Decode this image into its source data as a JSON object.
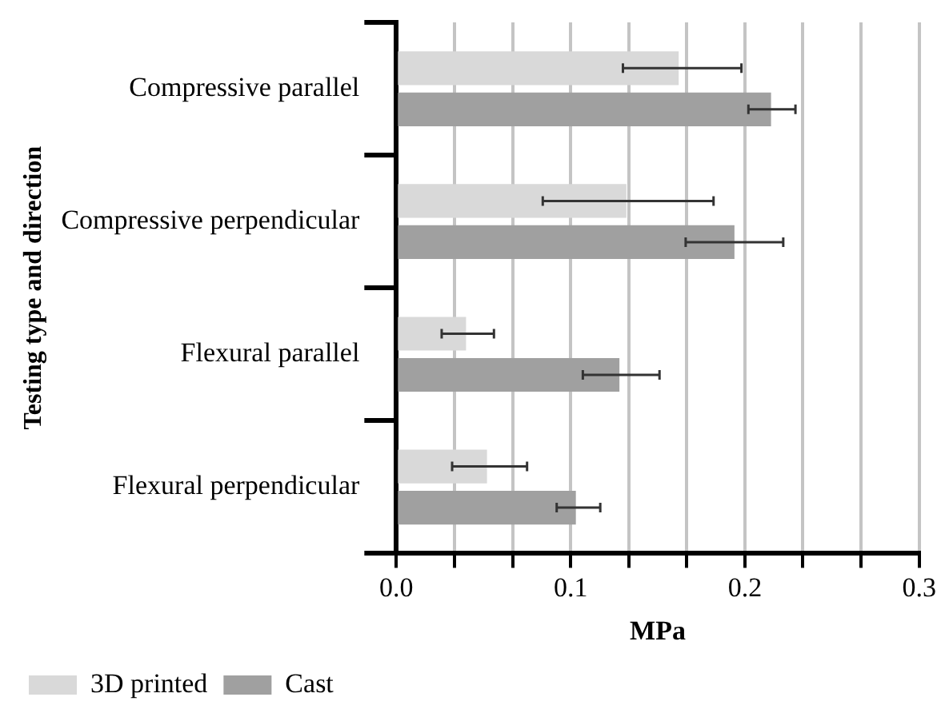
{
  "chart_data": {
    "type": "bar",
    "orientation": "horizontal",
    "ylabel": "Testing type and direction",
    "xlabel": "MPa",
    "categories": [
      "Compressive parallel",
      "Compressive perpendicular",
      "Flexural parallel",
      "Flexural perpendicular"
    ],
    "series": [
      {
        "name": "3D printed",
        "color": "#d9d9d9",
        "values": [
          0.162,
          0.132,
          0.04,
          0.052
        ],
        "errors": [
          [
            0.13,
            0.198
          ],
          [
            0.084,
            0.182
          ],
          [
            0.026,
            0.056
          ],
          [
            0.032,
            0.075
          ]
        ]
      },
      {
        "name": "Cast",
        "color": "#a0a0a0",
        "values": [
          0.215,
          0.194,
          0.128,
          0.103
        ],
        "errors": [
          [
            0.202,
            0.229
          ],
          [
            0.166,
            0.222
          ],
          [
            0.107,
            0.151
          ],
          [
            0.092,
            0.117
          ]
        ]
      }
    ],
    "xlim": [
      0,
      0.3
    ],
    "xticks": [
      {
        "value": 0,
        "label": "0.0"
      },
      {
        "value": 0.0333,
        "label": null
      },
      {
        "value": 0.0667,
        "label": null
      },
      0.1,
      {
        "value": 0.1333,
        "label": null
      },
      {
        "value": 0.1667,
        "label": null
      },
      0.2,
      {
        "value": 0.2333,
        "label": null
      },
      {
        "value": 0.2667,
        "label": null
      },
      0.3
    ],
    "grid": "x",
    "legend": "bottom left"
  }
}
